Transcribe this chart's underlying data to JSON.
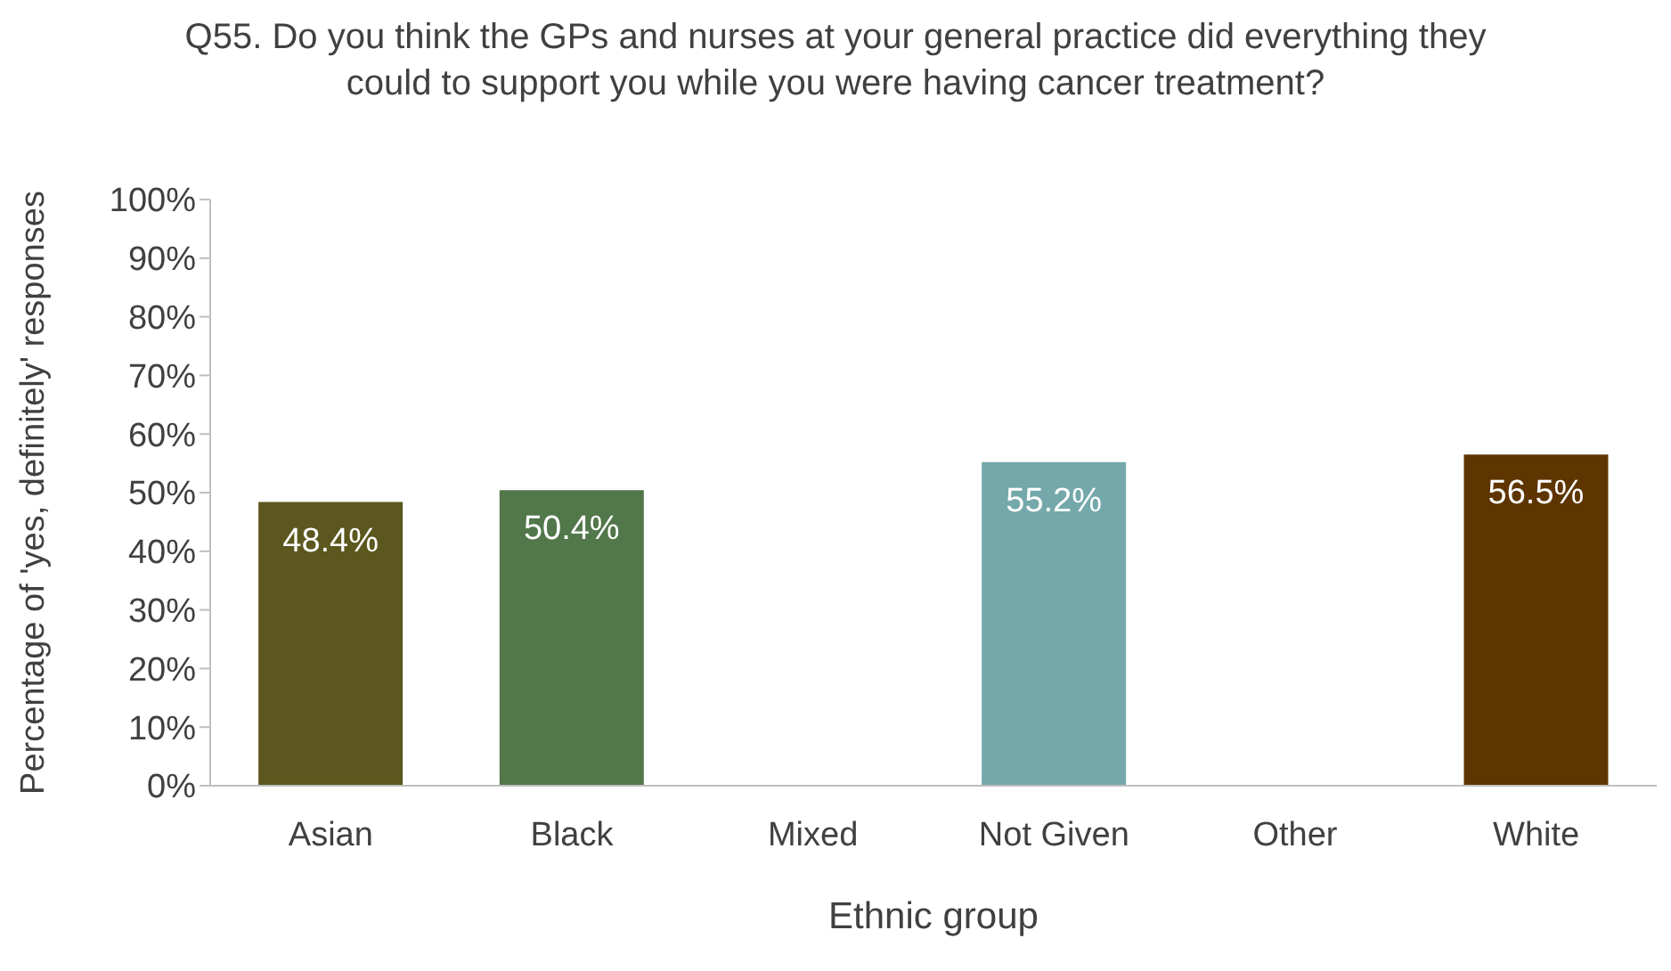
{
  "chart_data": {
    "type": "bar",
    "title": "Q55. Do you think the GPs and nurses at your general practice did everything they could to support you while you were having cancer treatment?",
    "xlabel": "Ethnic group",
    "ylabel": "Percentage of 'yes, definitely' responses",
    "categories": [
      "Asian",
      "Black",
      "Mixed",
      "Not Given",
      "Other",
      "White"
    ],
    "values": [
      48.4,
      50.4,
      null,
      55.2,
      null,
      56.5
    ],
    "colors": [
      "#5b571e",
      "#52774a",
      "#5b571e",
      "#74a8aa",
      "#5b571e",
      "#5e3500"
    ],
    "value_labels": [
      "48.4%",
      "50.4%",
      null,
      "55.2%",
      null,
      "56.5%"
    ],
    "ylim": [
      0,
      100
    ],
    "yticks": [
      {
        "value": 0,
        "label": "0%"
      },
      {
        "value": 10,
        "label": "10%"
      },
      {
        "value": 20,
        "label": "20%"
      },
      {
        "value": 30,
        "label": "30%"
      },
      {
        "value": 40,
        "label": "40%"
      },
      {
        "value": 50,
        "label": "50%"
      },
      {
        "value": 60,
        "label": "60%"
      },
      {
        "value": 70,
        "label": "70%"
      },
      {
        "value": 80,
        "label": "80%"
      },
      {
        "value": 90,
        "label": "90%"
      },
      {
        "value": 100,
        "label": "100%"
      }
    ],
    "grid": false,
    "legend": false
  }
}
